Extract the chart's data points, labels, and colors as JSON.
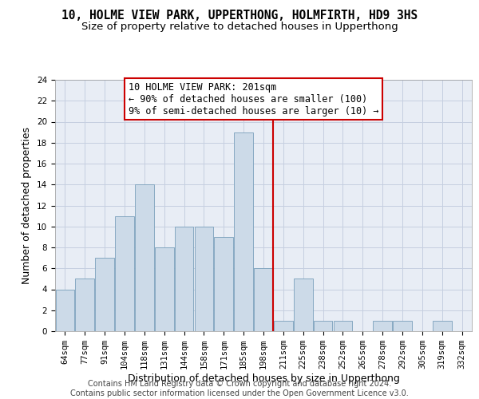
{
  "title": "10, HOLME VIEW PARK, UPPERTHONG, HOLMFIRTH, HD9 3HS",
  "subtitle": "Size of property relative to detached houses in Upperthong",
  "xlabel": "Distribution of detached houses by size in Upperthong",
  "ylabel": "Number of detached properties",
  "categories": [
    "64sqm",
    "77sqm",
    "91sqm",
    "104sqm",
    "118sqm",
    "131sqm",
    "144sqm",
    "158sqm",
    "171sqm",
    "185sqm",
    "198sqm",
    "211sqm",
    "225sqm",
    "238sqm",
    "252sqm",
    "265sqm",
    "278sqm",
    "292sqm",
    "305sqm",
    "319sqm",
    "332sqm"
  ],
  "values": [
    4,
    5,
    7,
    11,
    14,
    8,
    10,
    10,
    9,
    19,
    6,
    1,
    5,
    1,
    1,
    0,
    1,
    1,
    0,
    1,
    0
  ],
  "bar_color": "#ccdae8",
  "bar_edge_color": "#7aa0bb",
  "vline_x_index": 10.5,
  "vline_color": "#cc0000",
  "annotation_line1": "10 HOLME VIEW PARK: 201sqm",
  "annotation_line2": "← 90% of detached houses are smaller (100)",
  "annotation_line3": "9% of semi-detached houses are larger (10) →",
  "annotation_box_color": "#cc0000",
  "ylim": [
    0,
    24
  ],
  "yticks": [
    0,
    2,
    4,
    6,
    8,
    10,
    12,
    14,
    16,
    18,
    20,
    22,
    24
  ],
  "grid_color": "#c5cfe0",
  "background_color": "#e8edf5",
  "footer": "Contains HM Land Registry data © Crown copyright and database right 2024.\nContains public sector information licensed under the Open Government Licence v3.0.",
  "title_fontsize": 10.5,
  "subtitle_fontsize": 9.5,
  "ylabel_fontsize": 9,
  "xlabel_fontsize": 9,
  "tick_fontsize": 7.5,
  "annotation_fontsize": 8.5,
  "footer_fontsize": 7
}
